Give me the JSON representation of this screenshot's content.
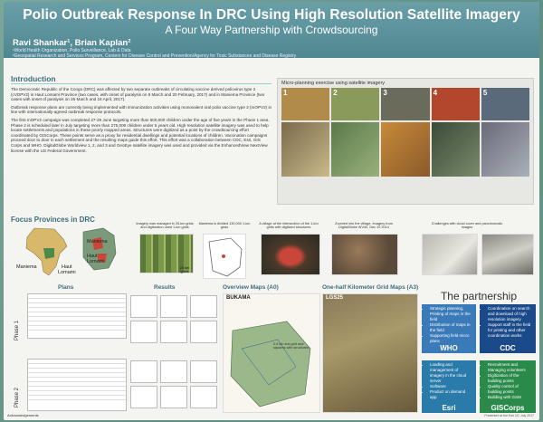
{
  "poster": {
    "title": "Polio Outbreak Response In DRC Using High Resolution Satellite Imagery",
    "subtitle": "A Four Way Partnership with Crowdsourcing",
    "authors": "Ravi Shankar¹, Brian Kaplan²",
    "affiliation_1": "¹World Health Organization, Polio Surveillance, Lab & Data",
    "affiliation_2": "²Geospatial Research and Services Program, Centers for Disease Control and Prevention/Agency for Toxic Substances and Disease Registry"
  },
  "intro": {
    "heading": "Introduction",
    "p1": "The Democratic Republic of the Congo (DRC) was affected by two separate outbreaks of circulating vaccine derived poliovirus type 2 (cVDPV2) in Haut Lomami Province (two cases, with onset of paralysis on 8 March and 20 February, 2017) and in Maniema Province (two cases with onset of paralysis on 26 March and 18 April, 2017).",
    "p2": "Outbreak response plans are currently being implemented with immunization activities using monovalent oral polio vaccine type 2 (mOPV2) in line with internationally-agreed outbreak response protocols.",
    "p3": "The first mOPV2 campaign was completed 27-29 June targeting more than 500,000 children under the age of five years in the Phase 1 area. Phase 2 is scheduled later in July targeting more than 275,000 children under 5 years old. High resolution satellite imagery was used to help locate settlements and populations in these poorly mapped areas. Structures were digitized as a point by the crowdsourcing effort coordinated by GISCorps. These points serve as a proxy for residential dwellings and potential locations of children. Vaccination campaigns proceed door to door in each settlement and the resulting maps guide this effort. This effort was a collaboration between CDC, Esri, GIS Corps and WHO. DigitalGlobe Worldview 1, 2, and 3 and GeoEye satellite imagery was used and provided via the EnhancedView NextView license with the US Federal Government."
  },
  "microplan": {
    "heading": "Micro-planning exercise using satellite imagery",
    "steps": [
      "1",
      "2",
      "3",
      "4",
      "5"
    ]
  },
  "focus": {
    "heading": "Focus Provinces in DRC",
    "maniema_label": "Maniema",
    "haut_lomami_label": "Haut\nLomami",
    "maniema_label_2": "Maniema",
    "haut_lomami_label_2": "Haut\nLomami"
  },
  "panels": {
    "p1": "Imagery was managed in 25-km grids and digitization used 1-km grids",
    "p1_scale": "25 km\ngrids",
    "p2": "Maniema is divided 130,000 1-km grids",
    "p3": "A village at the intersection of the 1-km grids with digitized structures",
    "p4": "Zoomed into the village. Imagery from DigitalGlobe WV40, Dec 10 2014",
    "p5": "Challenges with cloud cover and panchromatic images"
  },
  "plans": {
    "heading": "Plans",
    "phase1": "Phase 1",
    "phase2": "Phase 2"
  },
  "results": {
    "heading": "Results",
    "labels": [
      "300,000 structures digitized",
      "62 1-km grids",
      "Average per member 60-70",
      "2,500 structures",
      "WGS map grids plot",
      "all 24 grids"
    ]
  },
  "overview": {
    "heading": "Overview Maps (A0)",
    "label": "BUKAMA",
    "note": "0.5 km sub grid and squares with structures"
  },
  "half_km": {
    "heading": "One-half Kilometer Grid Maps (A3)",
    "label": "LGS25"
  },
  "partnership": {
    "heading": "The partnership",
    "who_items": [
      "Strategic planning, Printing of maps in the field",
      "Distribution of maps in the field",
      "Supporting field micro plans"
    ],
    "cdc_items": [
      "Coordination on search and download of high resolution imagery",
      "Support staff in the field for printing and other coordination works"
    ],
    "esri_items": [
      "Loading and management of imagery in the cloud server",
      "Software",
      "Product on demand app"
    ],
    "giscorps_items": [
      "Recruitment and Managing volunteers",
      "Digitization of the building points",
      "Quality control of building points",
      "Building with GSM"
    ],
    "who": "WHO",
    "cdc": "CDC",
    "esri": "Esri",
    "giscorps": "GISCorps"
  },
  "ack": "Acknowledgements",
  "footer": "Presented at the Esri UC July 2017"
}
